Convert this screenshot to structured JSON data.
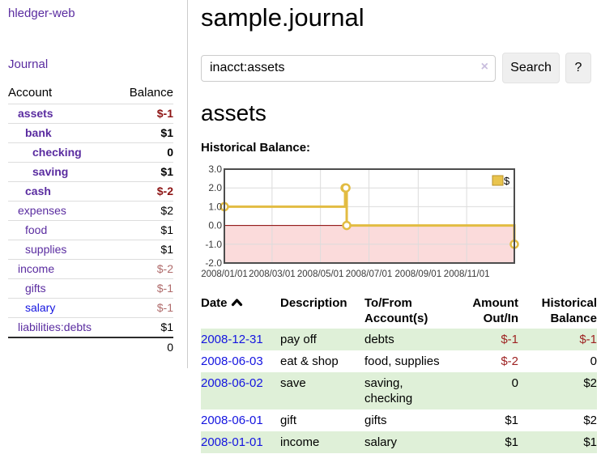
{
  "app": {
    "title": "hledger-web"
  },
  "sidebar": {
    "journal_link": "Journal",
    "accounts_table": {
      "headers": [
        "Account",
        "Balance"
      ],
      "rows": [
        {
          "account": "assets",
          "depth": 1,
          "bold": true,
          "account_color": "purple",
          "balance": "$-1",
          "balance_class": "neg-strong"
        },
        {
          "account": "bank",
          "depth": 2,
          "bold": true,
          "account_color": "purple",
          "balance": "$1",
          "balance_class": ""
        },
        {
          "account": "checking",
          "depth": 3,
          "bold": true,
          "account_color": "purple",
          "balance": "0",
          "balance_class": ""
        },
        {
          "account": "saving",
          "depth": 3,
          "bold": true,
          "account_color": "purple",
          "balance": "$1",
          "balance_class": ""
        },
        {
          "account": "cash",
          "depth": 2,
          "bold": true,
          "account_color": "purple",
          "balance": "$-2",
          "balance_class": "neg-strong"
        },
        {
          "account": "expenses",
          "depth": 1,
          "bold": false,
          "account_color": "purple",
          "balance": "$2",
          "balance_class": ""
        },
        {
          "account": "food",
          "depth": 2,
          "bold": false,
          "account_color": "purple",
          "balance": "$1",
          "balance_class": ""
        },
        {
          "account": "supplies",
          "depth": 2,
          "bold": false,
          "account_color": "purple",
          "balance": "$1",
          "balance_class": ""
        },
        {
          "account": "income",
          "depth": 1,
          "bold": false,
          "account_color": "purple",
          "balance": "$-2",
          "balance_class": "neg-muted"
        },
        {
          "account": "gifts",
          "depth": 2,
          "bold": false,
          "account_color": "purple",
          "balance": "$-1",
          "balance_class": "neg-muted"
        },
        {
          "account": "salary",
          "depth": 2,
          "bold": false,
          "account_color": "blue",
          "balance": "$-1",
          "balance_class": "neg-muted"
        },
        {
          "account": "liabilities:debts",
          "depth": 1,
          "bold": false,
          "account_color": "purple",
          "balance": "$1",
          "balance_class": ""
        }
      ],
      "total": "0"
    }
  },
  "main": {
    "title": "sample.journal",
    "search": {
      "value": "inacct:assets",
      "clear_icon": "×",
      "search_button": "Search",
      "help_button": "?"
    },
    "account_heading": "assets",
    "chart_title": "Historical Balance:"
  },
  "register": {
    "headers": {
      "date": "Date",
      "description": "Description",
      "accounts": "To/From Account(s)",
      "amount": "Amount Out/In",
      "balance": "Historical Balance"
    },
    "rows": [
      {
        "date": "2008-12-31",
        "description": "pay off",
        "accounts": "debts",
        "amount": "$-1",
        "amount_negative": true,
        "balance": "$-1",
        "balance_negative": true
      },
      {
        "date": "2008-06-03",
        "description": "eat & shop",
        "accounts": "food, supplies",
        "amount": "$-2",
        "amount_negative": true,
        "balance": "0",
        "balance_negative": false
      },
      {
        "date": "2008-06-02",
        "description": "save",
        "accounts": "saving, checking",
        "amount": "0",
        "amount_negative": false,
        "balance": "$2",
        "balance_negative": false
      },
      {
        "date": "2008-06-01",
        "description": "gift",
        "accounts": "gifts",
        "amount": "$1",
        "amount_negative": false,
        "balance": "$2",
        "balance_negative": false
      },
      {
        "date": "2008-01-01",
        "description": "income",
        "accounts": "salary",
        "amount": "$1",
        "amount_negative": false,
        "balance": "$1",
        "balance_negative": false
      }
    ]
  },
  "chart_data": {
    "type": "line",
    "step": true,
    "title": "Historical Balance:",
    "series": [
      {
        "name": "$",
        "points": [
          {
            "date": "2008-01-01",
            "value": 1
          },
          {
            "date": "2008-06-01",
            "value": 2
          },
          {
            "date": "2008-06-02",
            "value": 2
          },
          {
            "date": "2008-06-03",
            "value": 0
          },
          {
            "date": "2008-12-31",
            "value": -1
          }
        ]
      }
    ],
    "x_range": [
      "2008-01-01",
      "2008-12-31"
    ],
    "x_ticks": [
      "2008/01/01",
      "2008/03/01",
      "2008/05/01",
      "2008/07/01",
      "2008/09/01",
      "2008/11/01"
    ],
    "y_ticks": [
      "3.0",
      "2.0",
      "1.0",
      "0.0",
      "-1.0",
      "-2.0"
    ],
    "ylim": [
      -2,
      3
    ],
    "legend": {
      "label": "$",
      "position": "top-right"
    },
    "colors": {
      "line": "#e2bc42",
      "marker_fill": "#ffffff",
      "negative_region": "#fbdbdb",
      "zero_line": "#8b0000",
      "grid": "#dcdcdc",
      "border": "#4d4d4d",
      "legend_fill": "#e9c44d",
      "legend_border": "#b8912a",
      "axis_text": "#3a3a3a"
    }
  }
}
